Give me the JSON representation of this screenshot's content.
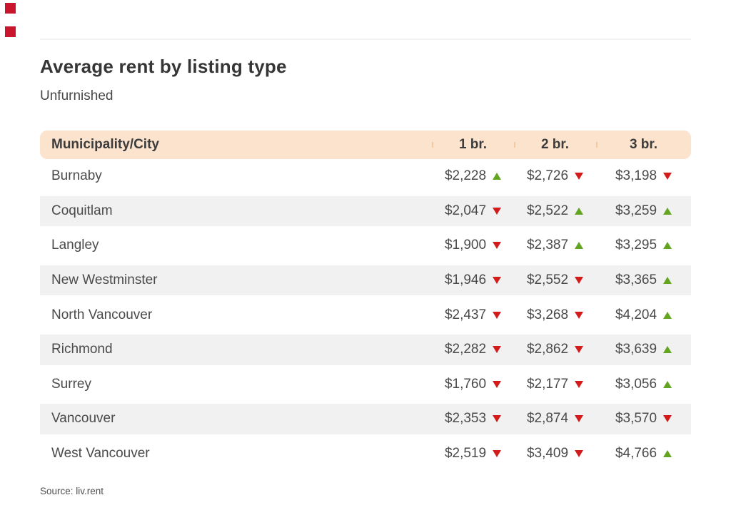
{
  "brand": {
    "squares_color": "#c9162c"
  },
  "header": {
    "title": "Average rent by listing type",
    "subtitle": "Unfurnished"
  },
  "colors": {
    "header_bg": "#fce3cd",
    "header_divider": "#f3c9a4",
    "row_stripe": "#f1f1f1",
    "trend_up": "#63a420",
    "trend_down": "#d21c1c"
  },
  "chart_data": {
    "type": "table",
    "title": "Average rent by listing type",
    "subtitle": "Unfurnished",
    "columns": [
      "Municipality/City",
      "1 br.",
      "2 br.",
      "3 br."
    ],
    "rows": [
      {
        "city": "Burnaby",
        "values": [
          {
            "price": "$2,228",
            "trend": "up"
          },
          {
            "price": "$2,726",
            "trend": "down"
          },
          {
            "price": "$3,198",
            "trend": "down"
          }
        ]
      },
      {
        "city": "Coquitlam",
        "values": [
          {
            "price": "$2,047",
            "trend": "down"
          },
          {
            "price": "$2,522",
            "trend": "up"
          },
          {
            "price": "$3,259",
            "trend": "up"
          }
        ]
      },
      {
        "city": "Langley",
        "values": [
          {
            "price": "$1,900",
            "trend": "down"
          },
          {
            "price": "$2,387",
            "trend": "up"
          },
          {
            "price": "$3,295",
            "trend": "up"
          }
        ]
      },
      {
        "city": "New Westminster",
        "values": [
          {
            "price": "$1,946",
            "trend": "down"
          },
          {
            "price": "$2,552",
            "trend": "down"
          },
          {
            "price": "$3,365",
            "trend": "up"
          }
        ]
      },
      {
        "city": "North Vancouver",
        "values": [
          {
            "price": "$2,437",
            "trend": "down"
          },
          {
            "price": "$3,268",
            "trend": "down"
          },
          {
            "price": "$4,204",
            "trend": "up"
          }
        ]
      },
      {
        "city": "Richmond",
        "values": [
          {
            "price": "$2,282",
            "trend": "down"
          },
          {
            "price": "$2,862",
            "trend": "down"
          },
          {
            "price": "$3,639",
            "trend": "up"
          }
        ]
      },
      {
        "city": "Surrey",
        "values": [
          {
            "price": "$1,760",
            "trend": "down"
          },
          {
            "price": "$2,177",
            "trend": "down"
          },
          {
            "price": "$3,056",
            "trend": "up"
          }
        ]
      },
      {
        "city": "Vancouver",
        "values": [
          {
            "price": "$2,353",
            "trend": "down"
          },
          {
            "price": "$2,874",
            "trend": "down"
          },
          {
            "price": "$3,570",
            "trend": "down"
          }
        ]
      },
      {
        "city": "West Vancouver",
        "values": [
          {
            "price": "$2,519",
            "trend": "down"
          },
          {
            "price": "$3,409",
            "trend": "down"
          },
          {
            "price": "$4,766",
            "trend": "up"
          }
        ]
      }
    ],
    "source": "Source: liv.rent"
  }
}
